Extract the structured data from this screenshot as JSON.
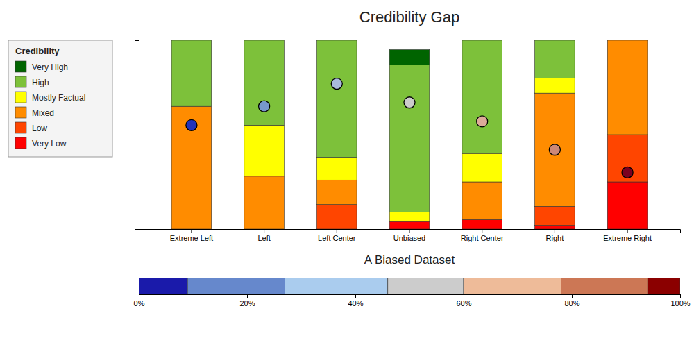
{
  "chart_data": [
    {
      "type": "bar",
      "stacked": true,
      "title": "Credibility Gap",
      "subtitle": "A Biased Dataset",
      "categories": [
        "Extreme Left",
        "Left",
        "Left Center",
        "Unbiased",
        "Right Center",
        "Right",
        "Extreme Right"
      ],
      "series": [
        {
          "name": "Very High",
          "color": "#006400",
          "values": [
            0.0,
            0.0,
            0.0,
            0.08,
            0.0,
            0.0,
            0.0
          ]
        },
        {
          "name": "High",
          "color": "#7dc13a",
          "values": [
            0.35,
            0.45,
            0.62,
            0.78,
            0.6,
            0.2,
            0.0
          ]
        },
        {
          "name": "Mostly Factual",
          "color": "#ffff00",
          "values": [
            0.0,
            0.27,
            0.12,
            0.05,
            0.15,
            0.08,
            0.0
          ]
        },
        {
          "name": "Mixed",
          "color": "#ff8c00",
          "values": [
            0.65,
            0.28,
            0.13,
            0.0,
            0.2,
            0.6,
            0.5
          ]
        },
        {
          "name": "Low",
          "color": "#ff4500",
          "values": [
            0.0,
            0.0,
            0.13,
            0.0,
            0.0,
            0.1,
            0.25
          ]
        },
        {
          "name": "Very Low",
          "color": "#ff0000",
          "values": [
            0.0,
            0.0,
            0.0,
            0.04,
            0.05,
            0.02,
            0.25
          ]
        },
        {
          "type": "scatter",
          "marker": "circle",
          "colors": [
            "#2233bb",
            "#7799cc",
            "#aabbdd",
            "#cccccc",
            "#ddaa99",
            "#cc8877",
            "#7a0020"
          ],
          "values": [
            0.55,
            0.65,
            0.77,
            0.67,
            0.57,
            0.42,
            0.3
          ]
        }
      ],
      "ylim": [
        0,
        1.0
      ],
      "tick_labels": "x",
      "legend": "upper left",
      "legend_title": "Credibility"
    },
    {
      "type": "colorbar",
      "bins": [
        0.0,
        0.09,
        0.27,
        0.46,
        0.6,
        0.78,
        0.94,
        1.0
      ],
      "colors": [
        "#1a1aaa",
        "#6688cc",
        "#aaccee",
        "#cccccc",
        "#eebb99",
        "#cc7755",
        "#8b0000"
      ],
      "xlim": [
        0,
        1
      ],
      "xticks": [
        {
          "value": 0,
          "label": "0%"
        },
        {
          "value": 0.2,
          "label": "20%"
        },
        {
          "value": 0.4,
          "label": "40%"
        },
        {
          "value": 0.6,
          "label": "60%"
        },
        {
          "value": 0.8,
          "label": "80%"
        },
        {
          "value": 1.0,
          "label": "100%"
        }
      ],
      "tick_labels": "x"
    }
  ]
}
